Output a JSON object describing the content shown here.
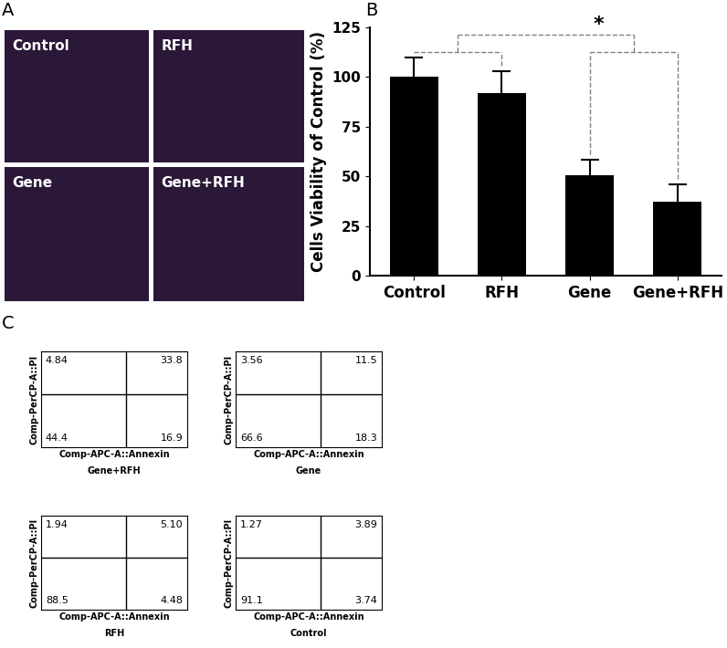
{
  "chart_data": [
    {
      "type": "image_grid",
      "panel_label": "A",
      "labels": [
        "Control",
        "RFH",
        "Gene",
        "Gene+RFH"
      ]
    },
    {
      "type": "bar",
      "panel_label": "B",
      "categories": [
        "Control",
        "RFH",
        "Gene",
        "Gene+RFH"
      ],
      "values": [
        100,
        92,
        50.5,
        37
      ],
      "errors": [
        10,
        11,
        8,
        9
      ],
      "color": "#000000",
      "ylabel": "Cells Viability of Control (%)",
      "ylim": [
        0,
        125
      ],
      "yticks": [
        0,
        25,
        50,
        75,
        100,
        125
      ],
      "significance": [
        {
          "groups": [
            [
              "Control",
              "RFH"
            ],
            [
              "Gene",
              "Gene+RFH"
            ]
          ],
          "label": "*"
        }
      ]
    },
    {
      "type": "quadrant",
      "panel_label": "C",
      "title": "Gene+RFH",
      "xlabel": "Comp-APC-A::Annexin",
      "ylabel": "Comp-PerCP-A::PI",
      "values": [
        4.84,
        33.8,
        44.4,
        16.9
      ],
      "tick_labels": false
    },
    {
      "type": "quadrant",
      "title": "Gene",
      "xlabel": "Comp-APC-A::Annexin",
      "ylabel": "Comp-PerCP-A::PI",
      "values": [
        3.56,
        11.5,
        66.6,
        18.3
      ],
      "tick_labels": false
    },
    {
      "type": "quadrant",
      "title": "RFH",
      "xlabel": "Comp-APC-A::Annexin",
      "ylabel": "Comp-PerCP-A::PI",
      "values": [
        1.94,
        5.1,
        88.5,
        4.48
      ],
      "value_labels": [
        "1.94",
        "5.10",
        "88.5",
        "4.48"
      ],
      "tick_labels": false
    },
    {
      "type": "quadrant",
      "title": "Control",
      "xlabel": "Comp-APC-A::Annexin",
      "ylabel": "Comp-PerCP-A::PI",
      "values": [
        1.27,
        3.89,
        91.1,
        3.74
      ],
      "tick_labels": false
    }
  ]
}
